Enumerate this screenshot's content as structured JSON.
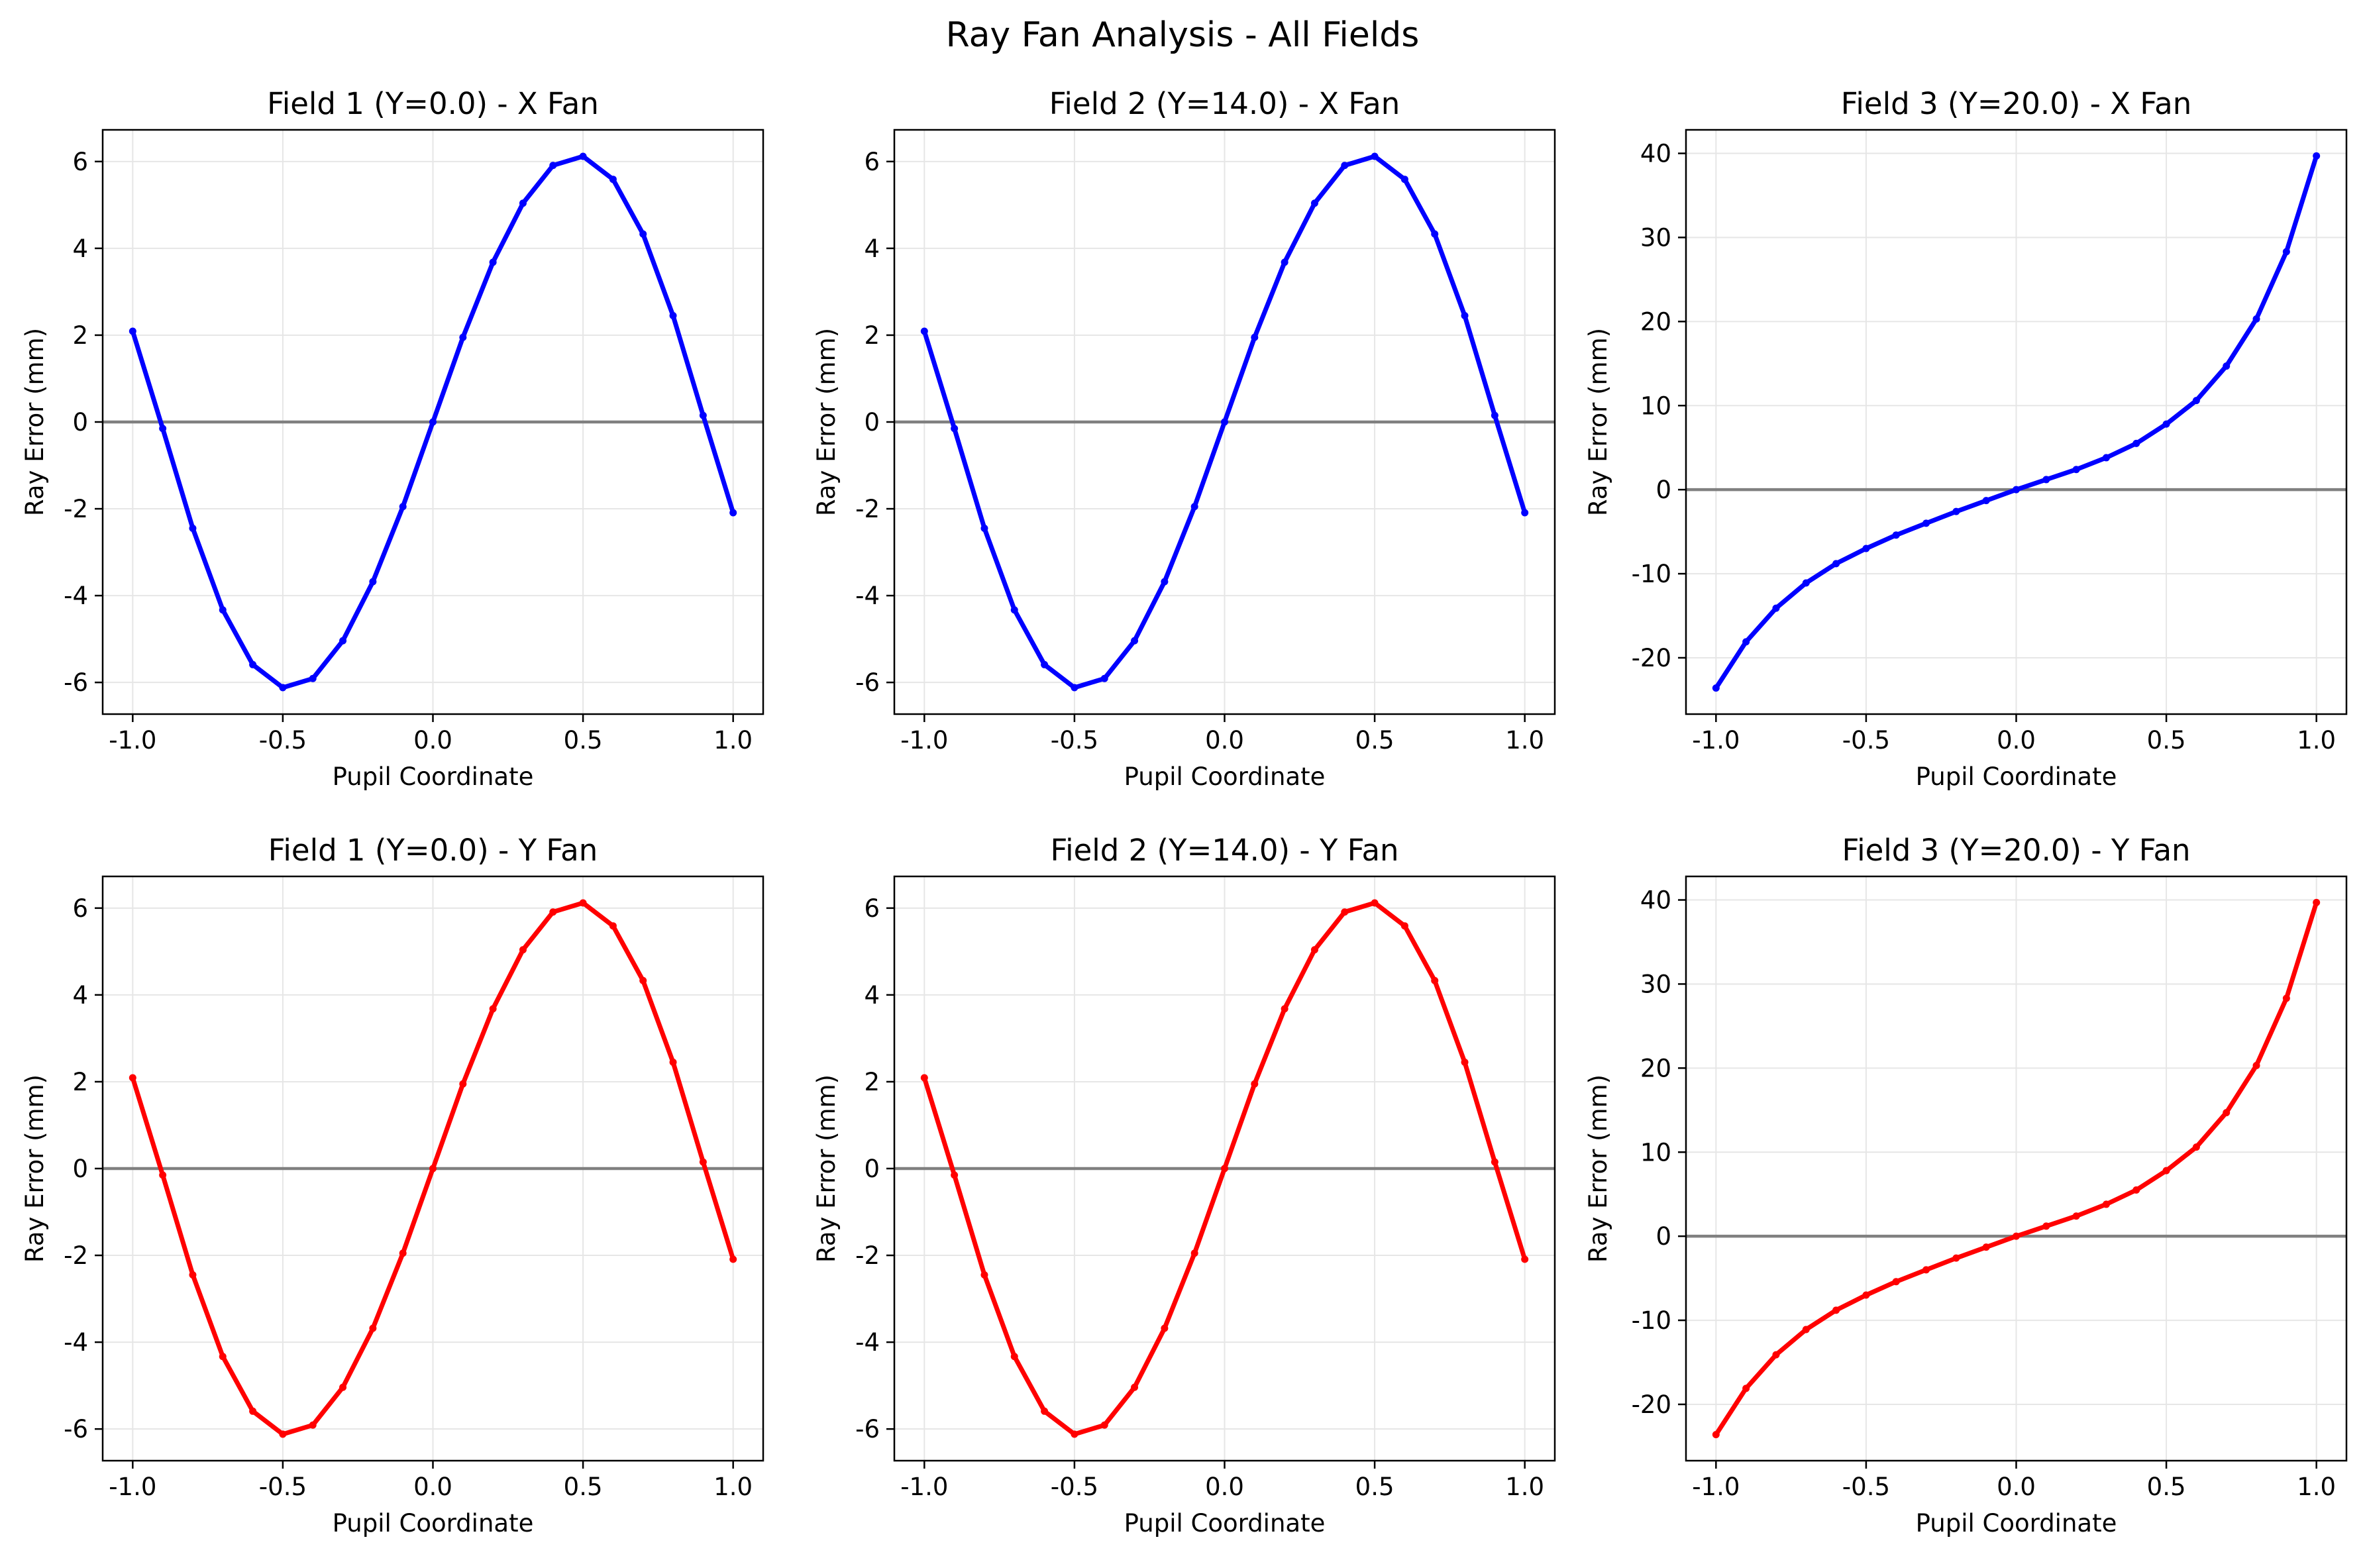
{
  "figure": {
    "title": "Ray Fan Analysis - All Fields"
  },
  "colors": {
    "x_fan": "#0000ff",
    "y_fan": "#ff0000",
    "zero_line": "#808080",
    "grid": "#e6e6e6",
    "axes": "#000000",
    "background": "#ffffff"
  },
  "chart_data": [
    {
      "type": "line",
      "title": "Field 1 (Y=0.0) - X Fan",
      "xlabel": "Pupil Coordinate",
      "ylabel": "Ray Error (mm)",
      "xlim": [
        -1.1,
        1.1
      ],
      "ylim": [
        -6.73,
        6.73
      ],
      "xticks": [
        -1.0,
        -0.5,
        0.0,
        0.5,
        1.0
      ],
      "xtick_labels": [
        "-1.0",
        "-0.5",
        "0.0",
        "0.5",
        "1.0"
      ],
      "yticks": [
        -6,
        -4,
        -2,
        0,
        2,
        4,
        6
      ],
      "ytick_labels": [
        "-6",
        "-4",
        "-2",
        "0",
        "2",
        "4",
        "6"
      ],
      "grid": true,
      "zero_line": true,
      "series": [
        {
          "color": "#0000ff",
          "x": [
            -1.0,
            -0.9,
            -0.8,
            -0.7,
            -0.6,
            -0.5,
            -0.4,
            -0.3,
            -0.2,
            -0.1,
            0.0,
            0.1,
            0.2,
            0.3,
            0.4,
            0.5,
            0.6,
            0.7,
            0.8,
            0.9,
            1.0
          ],
          "y": [
            2.09,
            -0.15,
            -2.45,
            -4.33,
            -5.59,
            -6.12,
            -5.91,
            -5.04,
            -3.68,
            -1.95,
            0.0,
            1.95,
            3.68,
            5.04,
            5.91,
            6.12,
            5.59,
            4.33,
            2.45,
            0.15,
            -2.09
          ]
        }
      ]
    },
    {
      "type": "line",
      "title": "Field 2 (Y=14.0) - X Fan",
      "xlabel": "Pupil Coordinate",
      "ylabel": "Ray Error (mm)",
      "xlim": [
        -1.1,
        1.1
      ],
      "ylim": [
        -6.73,
        6.73
      ],
      "xticks": [
        -1.0,
        -0.5,
        0.0,
        0.5,
        1.0
      ],
      "xtick_labels": [
        "-1.0",
        "-0.5",
        "0.0",
        "0.5",
        "1.0"
      ],
      "yticks": [
        -6,
        -4,
        -2,
        0,
        2,
        4,
        6
      ],
      "ytick_labels": [
        "-6",
        "-4",
        "-2",
        "0",
        "2",
        "4",
        "6"
      ],
      "grid": true,
      "zero_line": true,
      "series": [
        {
          "color": "#0000ff",
          "x": [
            -1.0,
            -0.9,
            -0.8,
            -0.7,
            -0.6,
            -0.5,
            -0.4,
            -0.3,
            -0.2,
            -0.1,
            0.0,
            0.1,
            0.2,
            0.3,
            0.4,
            0.5,
            0.6,
            0.7,
            0.8,
            0.9,
            1.0
          ],
          "y": [
            2.09,
            -0.15,
            -2.45,
            -4.33,
            -5.59,
            -6.12,
            -5.91,
            -5.04,
            -3.68,
            -1.95,
            0.0,
            1.95,
            3.68,
            5.04,
            5.91,
            6.12,
            5.59,
            4.33,
            2.45,
            0.15,
            -2.09
          ]
        }
      ]
    },
    {
      "type": "line",
      "title": "Field 3 (Y=20.0) - X Fan",
      "xlabel": "Pupil Coordinate",
      "ylabel": "Ray Error (mm)",
      "xlim": [
        -1.1,
        1.1
      ],
      "ylim": [
        -26.7,
        42.8
      ],
      "xticks": [
        -1.0,
        -0.5,
        0.0,
        0.5,
        1.0
      ],
      "xtick_labels": [
        "-1.0",
        "-0.5",
        "0.0",
        "0.5",
        "1.0"
      ],
      "yticks": [
        -20,
        -10,
        0,
        10,
        20,
        30,
        40
      ],
      "ytick_labels": [
        "-20",
        "-10",
        "0",
        "10",
        "20",
        "30",
        "40"
      ],
      "grid": true,
      "zero_line": true,
      "series": [
        {
          "color": "#0000ff",
          "x": [
            -1.0,
            -0.9,
            -0.8,
            -0.7,
            -0.6,
            -0.5,
            -0.4,
            -0.3,
            -0.2,
            -0.1,
            0.0,
            0.1,
            0.2,
            0.3,
            0.4,
            0.5,
            0.6,
            0.7,
            0.8,
            0.9,
            1.0
          ],
          "y": [
            -23.6,
            -18.1,
            -14.1,
            -11.1,
            -8.8,
            -7.0,
            -5.4,
            -4.0,
            -2.6,
            -1.3,
            0.0,
            1.2,
            2.4,
            3.8,
            5.5,
            7.8,
            10.6,
            14.7,
            20.3,
            28.3,
            39.7
          ]
        }
      ]
    },
    {
      "type": "line",
      "title": "Field 1 (Y=0.0) - Y Fan",
      "xlabel": "Pupil Coordinate",
      "ylabel": "Ray Error (mm)",
      "xlim": [
        -1.1,
        1.1
      ],
      "ylim": [
        -6.73,
        6.73
      ],
      "xticks": [
        -1.0,
        -0.5,
        0.0,
        0.5,
        1.0
      ],
      "xtick_labels": [
        "-1.0",
        "-0.5",
        "0.0",
        "0.5",
        "1.0"
      ],
      "yticks": [
        -6,
        -4,
        -2,
        0,
        2,
        4,
        6
      ],
      "ytick_labels": [
        "-6",
        "-4",
        "-2",
        "0",
        "2",
        "4",
        "6"
      ],
      "grid": true,
      "zero_line": true,
      "series": [
        {
          "color": "#ff0000",
          "x": [
            -1.0,
            -0.9,
            -0.8,
            -0.7,
            -0.6,
            -0.5,
            -0.4,
            -0.3,
            -0.2,
            -0.1,
            0.0,
            0.1,
            0.2,
            0.3,
            0.4,
            0.5,
            0.6,
            0.7,
            0.8,
            0.9,
            1.0
          ],
          "y": [
            2.09,
            -0.15,
            -2.45,
            -4.33,
            -5.59,
            -6.12,
            -5.91,
            -5.04,
            -3.68,
            -1.95,
            0.0,
            1.95,
            3.68,
            5.04,
            5.91,
            6.12,
            5.59,
            4.33,
            2.45,
            0.15,
            -2.09
          ]
        }
      ]
    },
    {
      "type": "line",
      "title": "Field 2 (Y=14.0) - Y Fan",
      "xlabel": "Pupil Coordinate",
      "ylabel": "Ray Error (mm)",
      "xlim": [
        -1.1,
        1.1
      ],
      "ylim": [
        -6.73,
        6.73
      ],
      "xticks": [
        -1.0,
        -0.5,
        0.0,
        0.5,
        1.0
      ],
      "xtick_labels": [
        "-1.0",
        "-0.5",
        "0.0",
        "0.5",
        "1.0"
      ],
      "yticks": [
        -6,
        -4,
        -2,
        0,
        2,
        4,
        6
      ],
      "ytick_labels": [
        "-6",
        "-4",
        "-2",
        "0",
        "2",
        "4",
        "6"
      ],
      "grid": true,
      "zero_line": true,
      "series": [
        {
          "color": "#ff0000",
          "x": [
            -1.0,
            -0.9,
            -0.8,
            -0.7,
            -0.6,
            -0.5,
            -0.4,
            -0.3,
            -0.2,
            -0.1,
            0.0,
            0.1,
            0.2,
            0.3,
            0.4,
            0.5,
            0.6,
            0.7,
            0.8,
            0.9,
            1.0
          ],
          "y": [
            2.09,
            -0.15,
            -2.45,
            -4.33,
            -5.59,
            -6.12,
            -5.91,
            -5.04,
            -3.68,
            -1.95,
            0.0,
            1.95,
            3.68,
            5.04,
            5.91,
            6.12,
            5.59,
            4.33,
            2.45,
            0.15,
            -2.09
          ]
        }
      ]
    },
    {
      "type": "line",
      "title": "Field 3 (Y=20.0) - Y Fan",
      "xlabel": "Pupil Coordinate",
      "ylabel": "Ray Error (mm)",
      "xlim": [
        -1.1,
        1.1
      ],
      "ylim": [
        -26.7,
        42.8
      ],
      "xticks": [
        -1.0,
        -0.5,
        0.0,
        0.5,
        1.0
      ],
      "xtick_labels": [
        "-1.0",
        "-0.5",
        "0.0",
        "0.5",
        "1.0"
      ],
      "yticks": [
        -20,
        -10,
        0,
        10,
        20,
        30,
        40
      ],
      "ytick_labels": [
        "-20",
        "-10",
        "0",
        "10",
        "20",
        "30",
        "40"
      ],
      "grid": true,
      "zero_line": true,
      "series": [
        {
          "color": "#ff0000",
          "x": [
            -1.0,
            -0.9,
            -0.8,
            -0.7,
            -0.6,
            -0.5,
            -0.4,
            -0.3,
            -0.2,
            -0.1,
            0.0,
            0.1,
            0.2,
            0.3,
            0.4,
            0.5,
            0.6,
            0.7,
            0.8,
            0.9,
            1.0
          ],
          "y": [
            -23.6,
            -18.1,
            -14.1,
            -11.1,
            -8.8,
            -7.0,
            -5.4,
            -4.0,
            -2.6,
            -1.3,
            0.0,
            1.2,
            2.4,
            3.8,
            5.5,
            7.8,
            10.6,
            14.7,
            20.3,
            28.3,
            39.7
          ]
        }
      ]
    }
  ]
}
